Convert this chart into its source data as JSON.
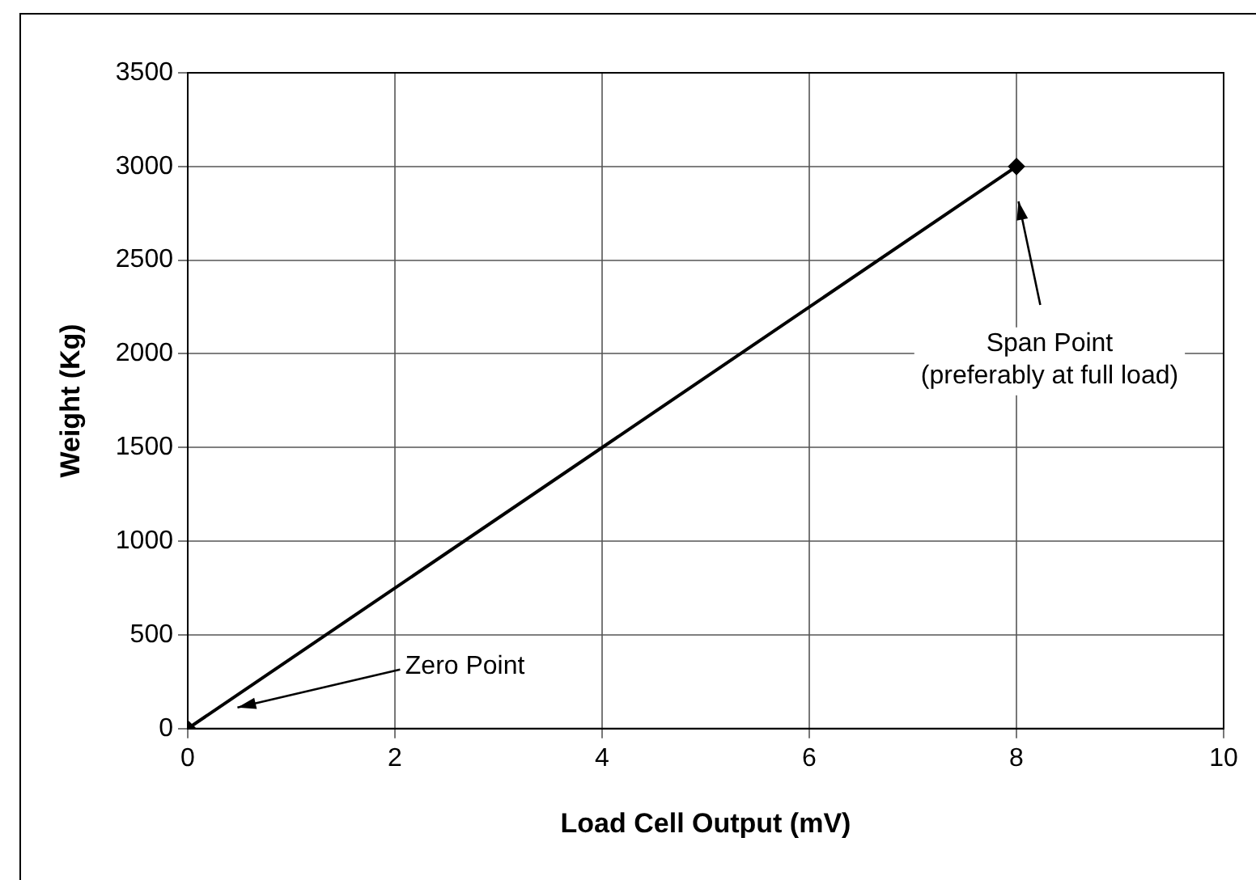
{
  "chart_data": {
    "type": "line",
    "xlabel": "Load Cell Output (mV)",
    "ylabel": "Weight (Kg)",
    "x": [
      0,
      8
    ],
    "series": [
      {
        "color": "#000000",
        "values": [
          0,
          3000
        ]
      }
    ],
    "xlim": [
      0,
      10
    ],
    "xticks": [
      0,
      2,
      4,
      6,
      8,
      10
    ],
    "ylim": [
      0,
      3500
    ],
    "yticks": [
      0,
      500,
      1000,
      1500,
      2000,
      2500,
      3000,
      3500
    ],
    "grid": true,
    "legend": false,
    "marker": "diamond",
    "line_style": "solid",
    "annotations": [
      "Zero Point",
      "Span Point\n(preferably at full load)"
    ]
  }
}
